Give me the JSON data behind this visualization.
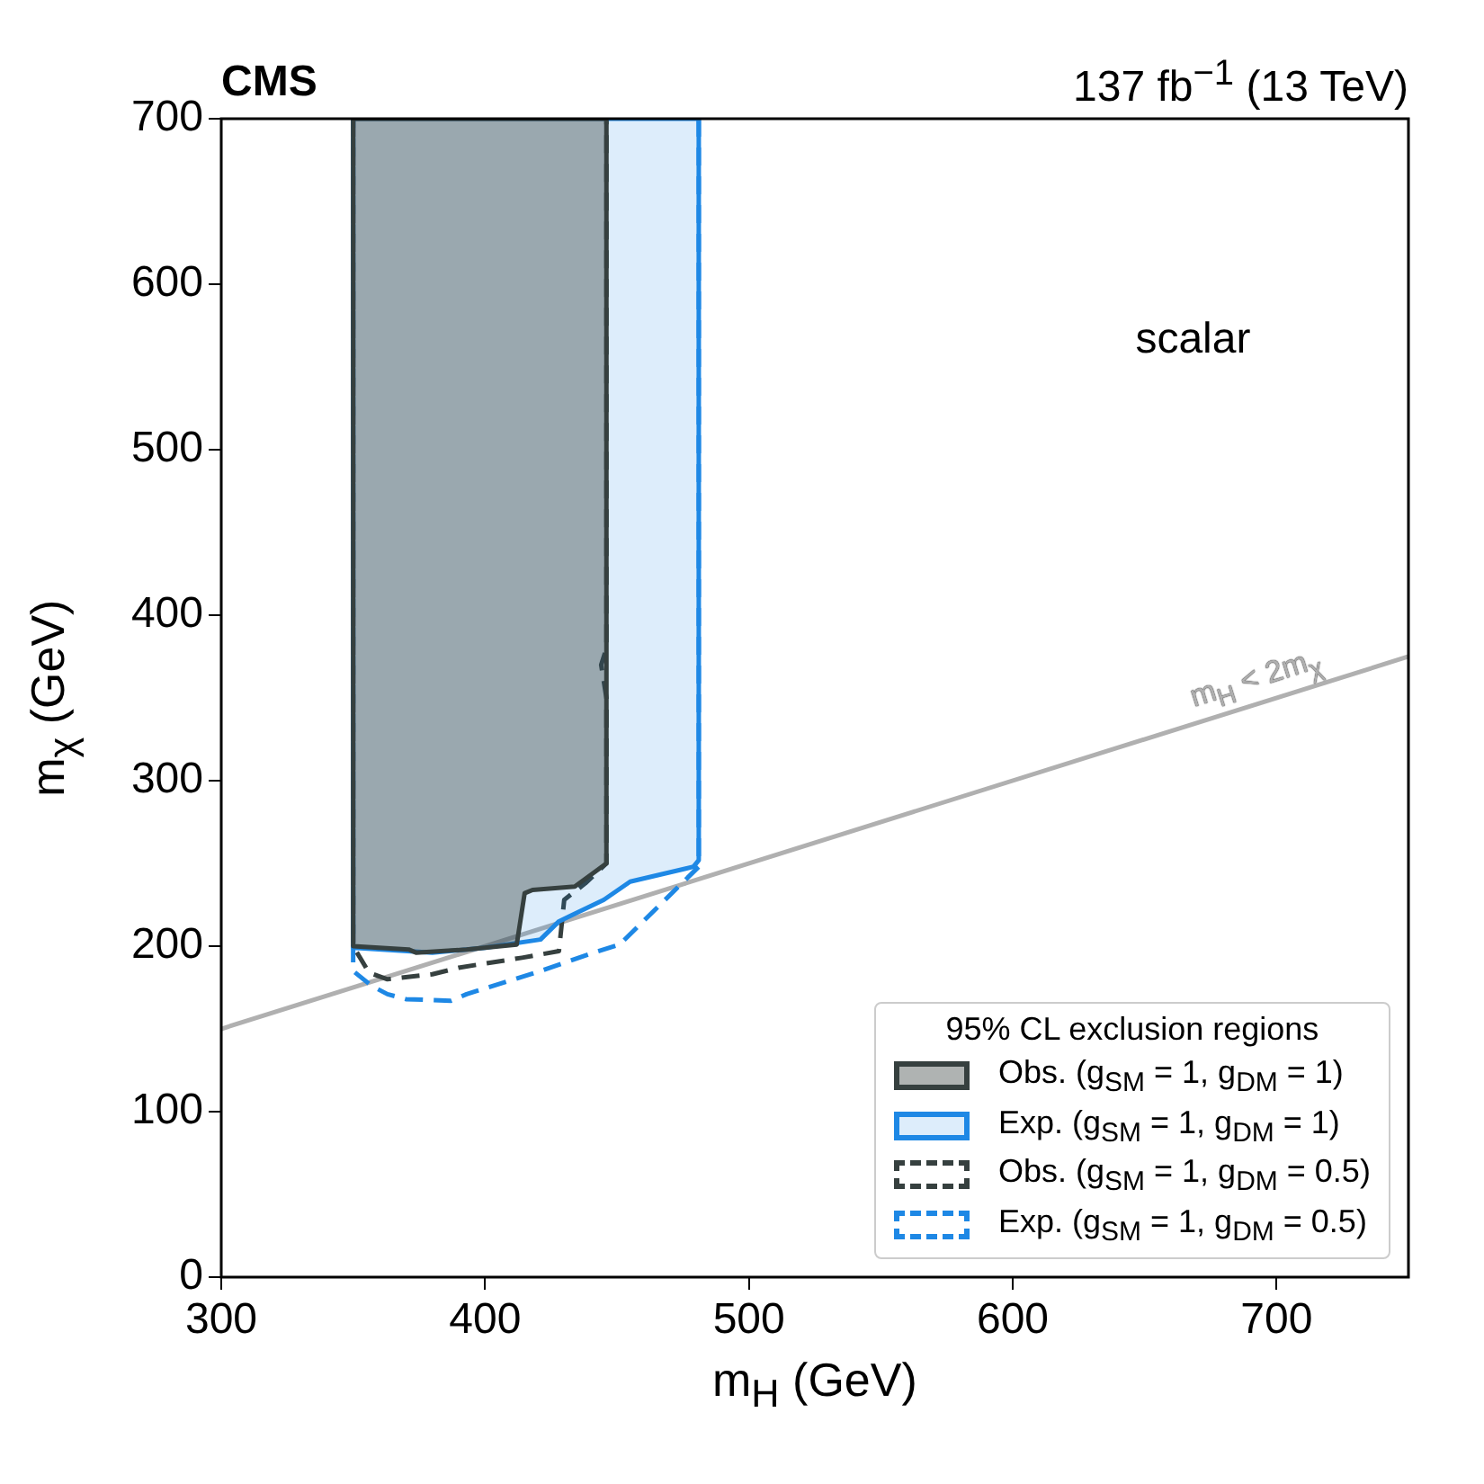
{
  "chart_data": {
    "type": "area",
    "title": "CMS",
    "subtitle": "137 fb$^{−1}$ (13 TeV)",
    "xlabel": "m$_{H}$ (GeV)",
    "ylabel": "m$_{χ}$ (GeV)",
    "legend_title": "95% CL exclusion regions",
    "annotations": [
      "scalar"
    ],
    "xlim": [
      300,
      750
    ],
    "xticks": [
      300,
      400,
      500,
      600,
      700
    ],
    "ylim": [
      0,
      700
    ],
    "yticks": [
      0,
      100,
      200,
      300,
      400,
      500,
      600,
      700
    ],
    "grid": false,
    "legend": "bottom right",
    "series": [
      {
        "name": "Obs. (g$_{SM}$ = 1, g$_{DM}$ = 1)",
        "color": "#36403f",
        "line_style": "solid",
        "x": [
          350,
          446,
          446,
          434,
          418,
          415,
          412,
          393,
          374,
          371,
          350,
          350
        ],
        "values": [
          700,
          700,
          250,
          236,
          234,
          232,
          201,
          198,
          196,
          198,
          200,
          700
        ]
      },
      {
        "name": "Exp. (g$_{SM}$ = 1, g$_{DM}$ = 1)",
        "color": "#1e88e5",
        "line_style": "solid",
        "x": [
          350,
          481,
          481,
          479,
          455,
          445,
          428,
          421,
          400,
          380,
          350,
          350
        ],
        "values": [
          700,
          700,
          252,
          248,
          239,
          228,
          215,
          204,
          199,
          196,
          199,
          700
        ]
      },
      {
        "name": "Obs. (g$_{SM}$ = 1, g$_{DM}$ = 0.5)",
        "type": "line",
        "color": "#36403f",
        "line_style": "dashed",
        "x": [
          350,
          350,
          356,
          363,
          380,
          390,
          414,
          428,
          430,
          438,
          446,
          446,
          444,
          446,
          446
        ],
        "values": [
          700,
          200,
          184,
          180,
          183,
          187,
          193,
          197,
          228,
          238,
          250,
          350,
          370,
          380,
          700
        ]
      },
      {
        "name": "Exp. (g$_{SM}$ = 1, g$_{DM}$ = 0.5)",
        "type": "line",
        "color": "#1e88e5",
        "line_style": "dashed",
        "x": [
          481,
          481,
          451,
          441,
          421,
          393,
          387,
          370,
          363,
          357,
          350,
          350
        ],
        "values": [
          700,
          248,
          201,
          196,
          185,
          171,
          167,
          168,
          171,
          176,
          185,
          700
        ]
      },
      {
        "name": "m$_{H}$ < 2m$_{χ}$",
        "type": "line",
        "color": "#b0b0b0",
        "line_style": "solid",
        "x": [
          300,
          750
        ],
        "values": [
          150,
          375
        ]
      }
    ]
  }
}
